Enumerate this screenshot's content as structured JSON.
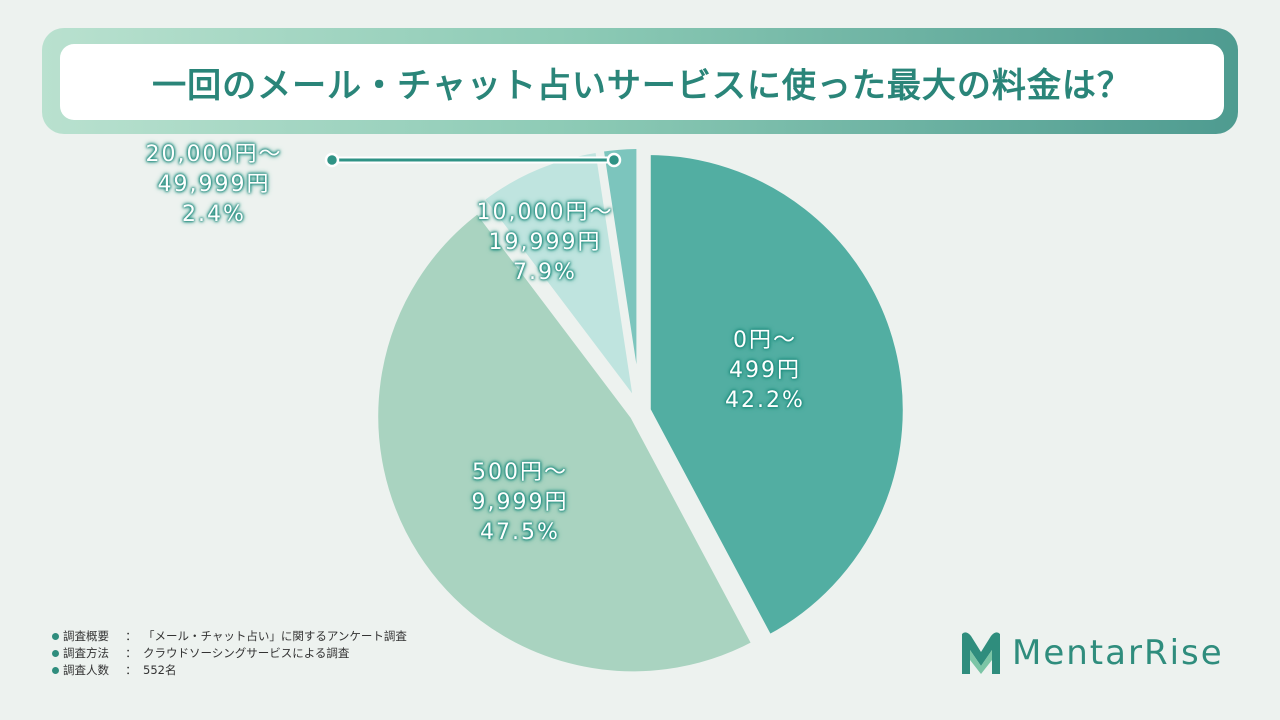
{
  "title": "一回のメール・チャット占いサービスに使った最大の料金は？",
  "chart_data": {
    "type": "pie",
    "title": "一回のメール・チャット占いサービスに使った最大の料金は？",
    "slices": [
      {
        "label_line1": "0円～",
        "label_line2": "499円",
        "value": 42.2,
        "value_text": "42.2%",
        "color": "#52aea2"
      },
      {
        "label_line1": "500円～",
        "label_line2": "9,999円",
        "value": 47.5,
        "value_text": "47.5%",
        "color": "#a9d3c0"
      },
      {
        "label_line1": "10,000円～",
        "label_line2": "19,999円",
        "value": 7.9,
        "value_text": "7.9%",
        "color": "#bfe4df"
      },
      {
        "label_line1": "20,000円～",
        "label_line2": "49,999円",
        "value": 2.4,
        "value_text": "2.4%",
        "color": "#7cc5bd"
      }
    ]
  },
  "notes": [
    {
      "key": "調査概要",
      "value": "「メール・チャット占い」に関するアンケート調査"
    },
    {
      "key": "調査方法",
      "value": "クラウドソーシングサービスによる調査"
    },
    {
      "key": "調査人数",
      "value": "552名"
    }
  ],
  "notes_colon": "：",
  "logo": {
    "text": "MentarRise",
    "color": "#2f8d7d"
  }
}
